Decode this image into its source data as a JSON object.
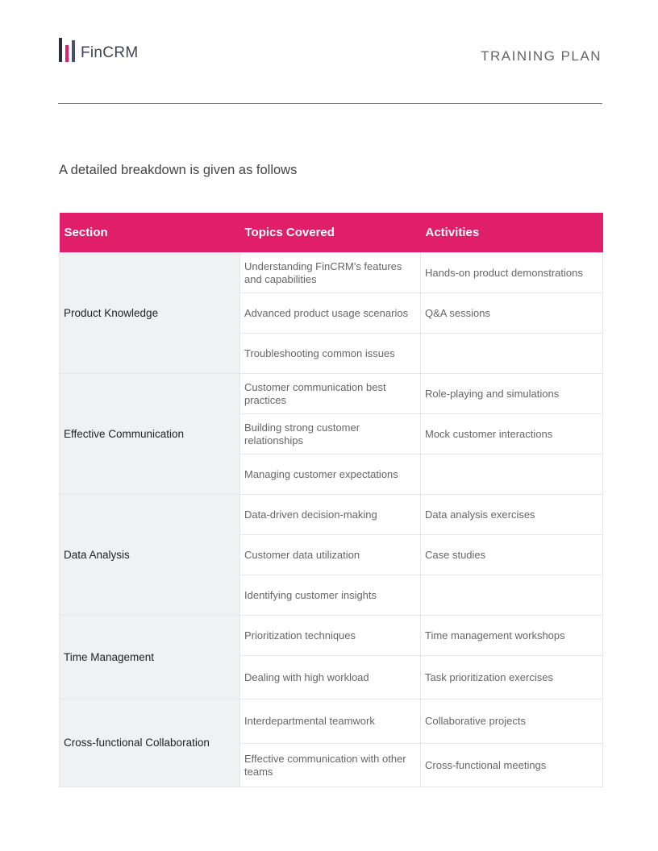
{
  "header": {
    "logo_text": "FinCRM",
    "logo_colors": [
      "#2b2d3c",
      "#e01e6a",
      "#4a4f6a"
    ],
    "title": "TRAINING PLAN"
  },
  "intro": "A detailed breakdown is given as follows",
  "accent_color": "#e01e6a",
  "table": {
    "columns": [
      "Section",
      "Topics Covered",
      "Activities"
    ],
    "sections": [
      {
        "name": "Product Knowledge",
        "rows": [
          {
            "topic": "Understanding FinCRM's features and capabilities",
            "activity": "Hands-on product demonstrations"
          },
          {
            "topic": "Advanced product usage scenarios",
            "activity": "Q&A sessions"
          },
          {
            "topic": "Troubleshooting common issues",
            "activity": ""
          }
        ]
      },
      {
        "name": "Effective Communication",
        "rows": [
          {
            "topic": "Customer communication best practices",
            "activity": "Role-playing and simulations"
          },
          {
            "topic": "Building strong customer relationships",
            "activity": "Mock customer interactions"
          },
          {
            "topic": "Managing customer expectations",
            "activity": ""
          }
        ]
      },
      {
        "name": "Data Analysis",
        "rows": [
          {
            "topic": "Data-driven decision-making",
            "activity": "Data analysis exercises"
          },
          {
            "topic": "Customer data utilization",
            "activity": "Case studies"
          },
          {
            "topic": "Identifying customer insights",
            "activity": ""
          }
        ]
      },
      {
        "name": "Time Management",
        "rows": [
          {
            "topic": "Prioritization techniques",
            "activity": "Time management workshops"
          },
          {
            "topic": "Dealing with high workload",
            "activity": "Task prioritization exercises"
          }
        ]
      },
      {
        "name": "Cross-functional Collaboration",
        "rows": [
          {
            "topic": "Interdepartmental teamwork",
            "activity": "Collaborative projects"
          },
          {
            "topic": "Effective communication with other teams",
            "activity": "Cross-functional meetings"
          }
        ]
      }
    ]
  }
}
